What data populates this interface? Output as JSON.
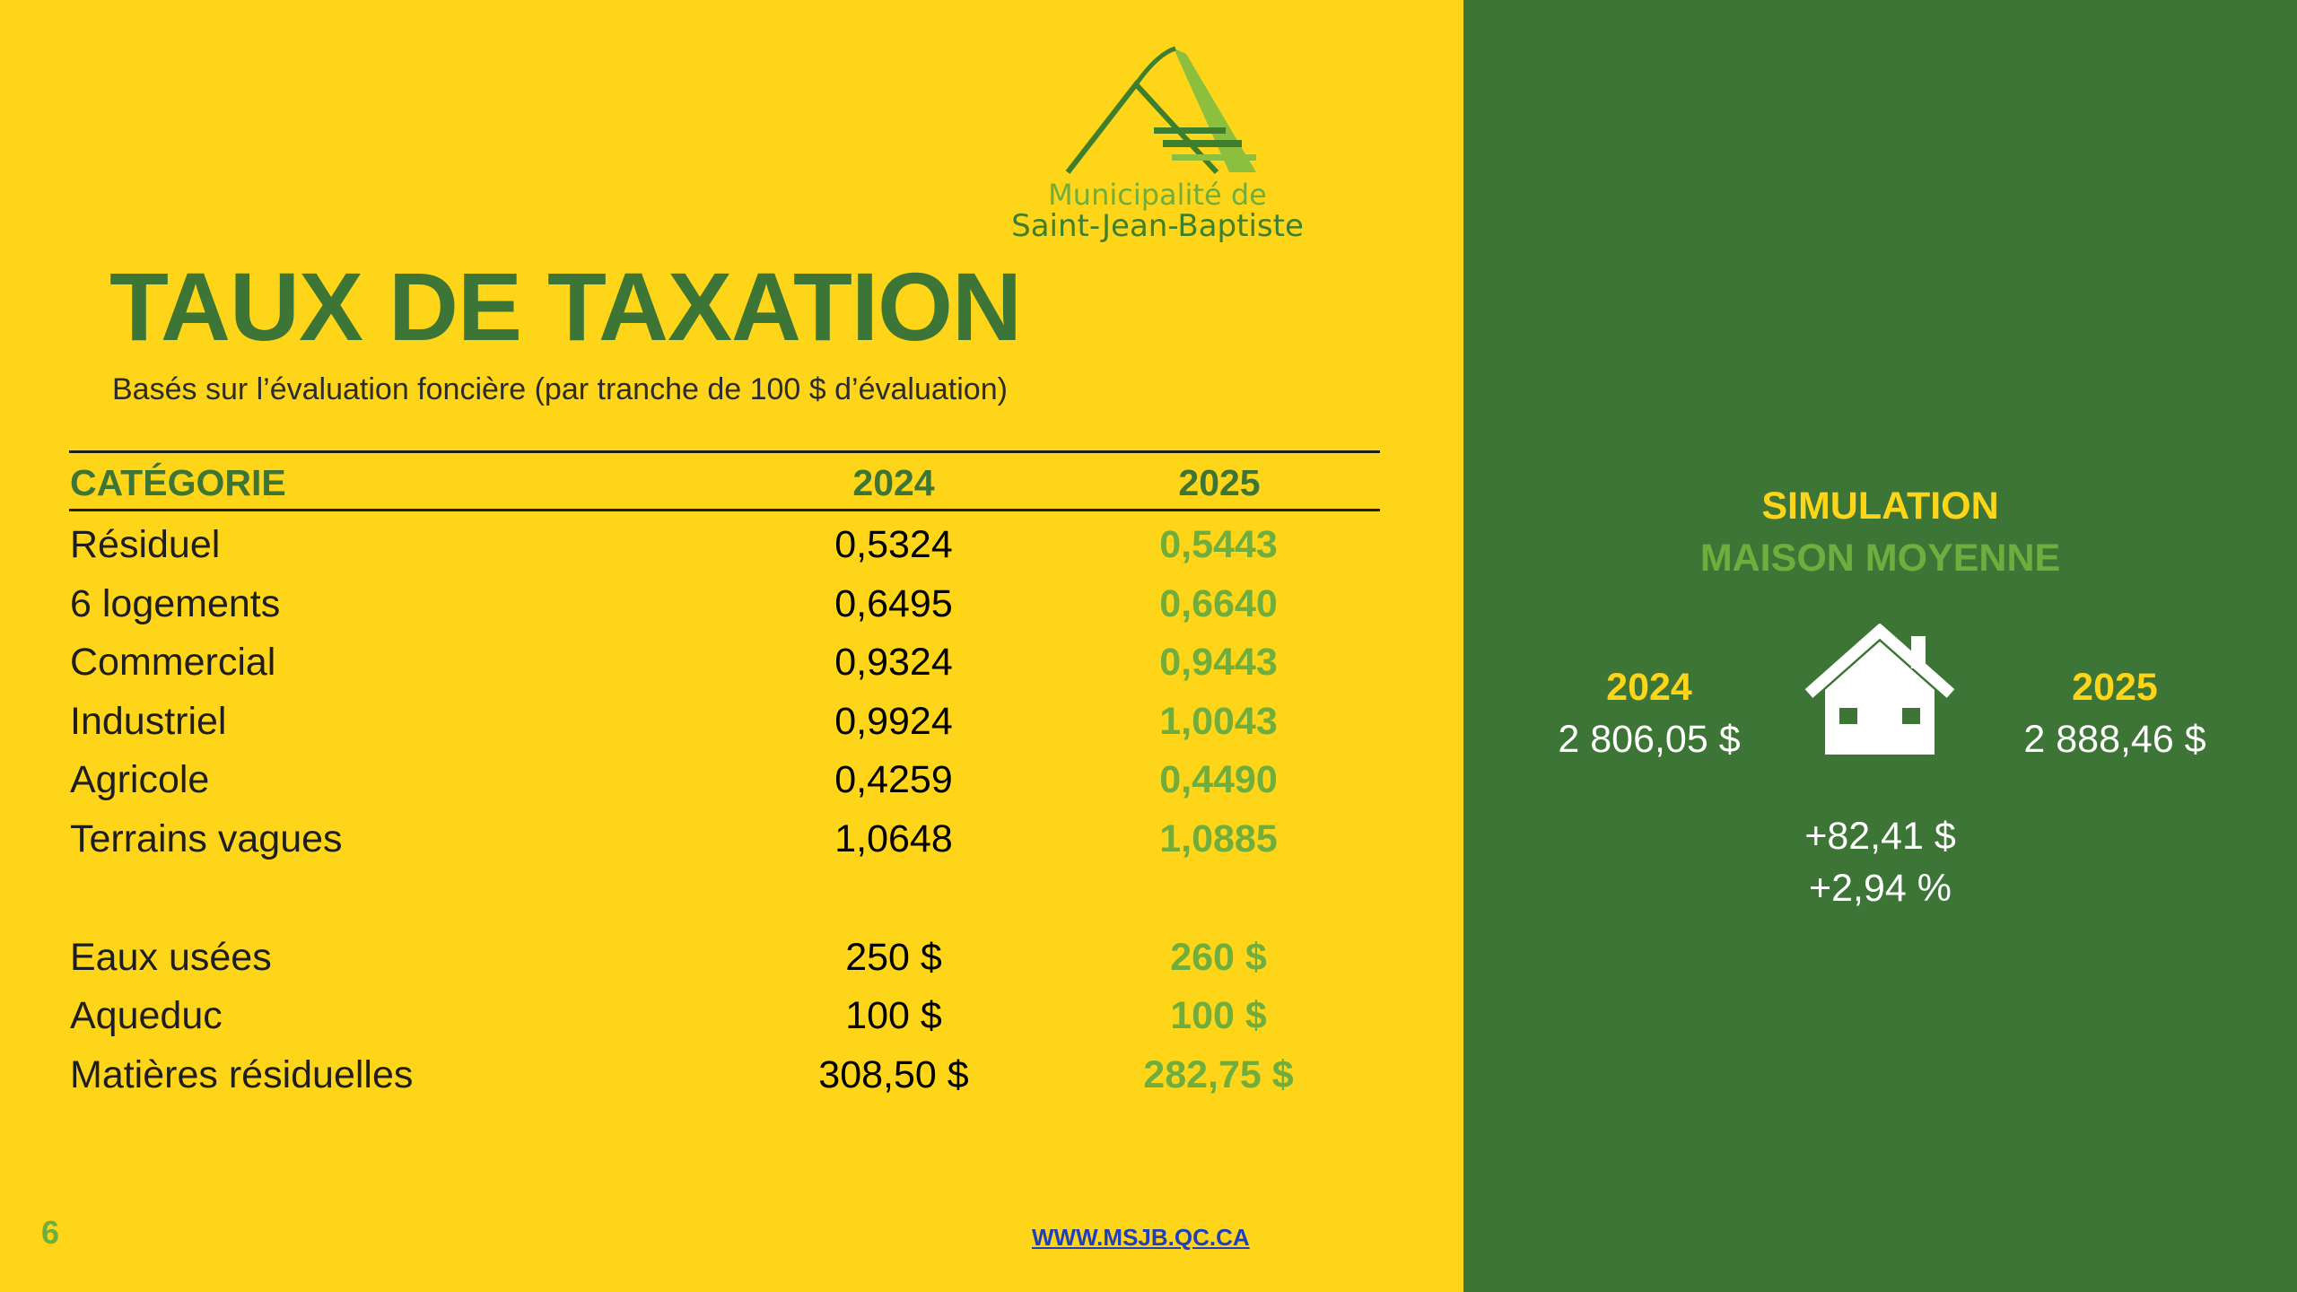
{
  "logo": {
    "line1": "Municipalité de",
    "line2": "Saint-Jean-Baptiste",
    "colors": {
      "dark_green": "#3E7F2D",
      "light_green": "#8DBF3F"
    }
  },
  "title": "TAUX DE TAXATION",
  "subtitle": "Basés sur l’évaluation foncière (par tranche de 100 $ d’évaluation)",
  "table": {
    "headers": {
      "category": "CATÉGORIE",
      "year1": "2024",
      "year2": "2025"
    },
    "rows": [
      {
        "label": "Résiduel",
        "v2024": "0,5324",
        "v2025": "0,5443"
      },
      {
        "label": "6 logements",
        "v2024": "0,6495",
        "v2025": "0,6640"
      },
      {
        "label": "Commercial",
        "v2024": "0,9324",
        "v2025": "0,9443"
      },
      {
        "label": "Industriel",
        "v2024": "0,9924",
        "v2025": "1,0043"
      },
      {
        "label": "Agricole",
        "v2024": "0,4259",
        "v2025": "0,4490"
      },
      {
        "label": "Terrains vagues",
        "v2024": "1,0648",
        "v2025": "1,0885"
      },
      {
        "label": "Eaux usées",
        "v2024": "250 $",
        "v2025": "260 $"
      },
      {
        "label": "Aqueduc",
        "v2024": "100 $",
        "v2025": "100 $"
      },
      {
        "label": "Matières résiduelles",
        "v2024": "308,50 $",
        "v2025": "282,75 $"
      }
    ]
  },
  "footer": {
    "page_number": "6",
    "url": "WWW.MSJB.QC.CA"
  },
  "simulation": {
    "title1": "SIMULATION",
    "title2": "MAISON MOYENNE",
    "year1": "2024",
    "amount1": "2 806,05 $",
    "year2": "2025",
    "amount2": "2 888,46 $",
    "diff_amount": "+82,41 $",
    "diff_percent": "+2,94 %",
    "icon": "house-icon"
  },
  "colors": {
    "yellow_bg": "#FED518",
    "green_panel": "#3D7536",
    "light_green": "#6FAE3E",
    "white": "#FFFFFF"
  }
}
